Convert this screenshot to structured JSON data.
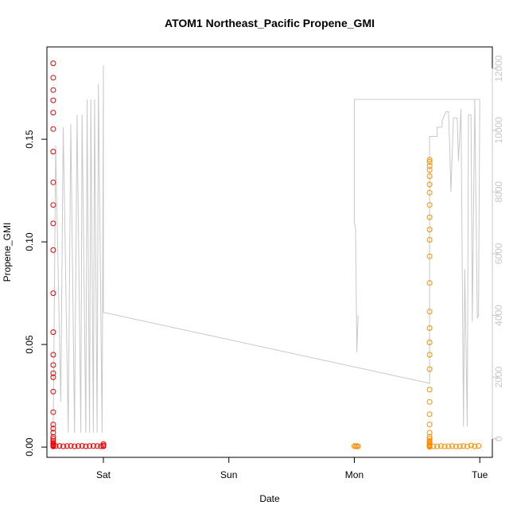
{
  "chart_data": {
    "type": "scatter",
    "title": "ATOM1 Northeast_Pacific Propene_GMI",
    "xlabel": "Date",
    "ylabel": "Propene_GMI",
    "x_ticks": [
      "Sat",
      "Sun",
      "Mon",
      "Tue"
    ],
    "x_tick_positions": [
      3,
      4,
      5,
      6
    ],
    "xlim": [
      2.55,
      6.1
    ],
    "ylim": [
      -0.005,
      0.195
    ],
    "y_ticks": [
      0.0,
      0.05,
      0.1,
      0.15
    ],
    "y_tick_labels": [
      "0.00",
      "0.05",
      "0.10",
      "0.15"
    ],
    "y2lim": [
      -600,
      12700
    ],
    "y2_ticks": [
      0,
      2000,
      4000,
      6000,
      8000,
      10000,
      12000
    ],
    "y2_tick_labels": [
      "0",
      "2000",
      "4000",
      "6000",
      "8000",
      "10000",
      "12000"
    ],
    "colors": {
      "series1": "#ee0000",
      "series2": "#ff8c00",
      "altitude": "#c8c8c8",
      "axis": "#000000",
      "axis_right": "#c8c8c8"
    },
    "series": [
      {
        "color": "#ee0000",
        "x": [
          2.6,
          2.6,
          2.6,
          2.6,
          2.6,
          2.6,
          2.6,
          2.6,
          2.6,
          2.6,
          2.6,
          2.6,
          2.6,
          2.6,
          2.6,
          2.6,
          2.6,
          2.6,
          2.6,
          2.6,
          2.6,
          2.6,
          2.6,
          2.6,
          2.6,
          2.6,
          2.6,
          2.6,
          2.6,
          2.6,
          2.6,
          2.62,
          2.65,
          2.68,
          2.71,
          2.74,
          2.77,
          2.8,
          2.83,
          2.86,
          2.89,
          2.92,
          2.95,
          2.98,
          3.0,
          3.0,
          3.0
        ],
        "y": [
          0.187,
          0.18,
          0.174,
          0.169,
          0.163,
          0.155,
          0.144,
          0.129,
          0.118,
          0.109,
          0.096,
          0.075,
          0.056,
          0.045,
          0.04,
          0.036,
          0.034,
          0.027,
          0.017,
          0.011,
          0.009,
          0.007,
          0.005,
          0.004,
          0.003,
          0.002,
          0.0015,
          0.001,
          0.0008,
          0.0005,
          0.0003,
          0.0005,
          0.0006,
          0.0004,
          0.0005,
          0.0006,
          0.0004,
          0.0005,
          0.0006,
          0.0004,
          0.0005,
          0.0006,
          0.0005,
          0.0004,
          0.0015,
          0.0008,
          0.0004
        ]
      },
      {
        "color": "#ff8c00",
        "x": [
          5.0,
          5.01,
          5.02,
          5.03,
          5.6,
          5.6,
          5.6,
          5.6,
          5.6,
          5.6,
          5.6,
          5.6,
          5.6,
          5.6,
          5.6,
          5.6,
          5.6,
          5.6,
          5.6,
          5.6,
          5.6,
          5.6,
          5.6,
          5.6,
          5.6,
          5.6,
          5.6,
          5.6,
          5.6,
          5.6,
          5.6,
          5.6,
          5.6,
          5.6,
          5.6,
          5.6,
          5.6,
          5.6,
          5.6,
          5.6,
          5.63,
          5.66,
          5.69,
          5.72,
          5.75,
          5.78,
          5.81,
          5.84,
          5.87,
          5.9,
          5.93,
          5.96,
          5.99
        ],
        "y": [
          0.0005,
          0.0003,
          0.0005,
          0.0004,
          0.14,
          0.139,
          0.137,
          0.135,
          0.132,
          0.128,
          0.124,
          0.118,
          0.112,
          0.106,
          0.101,
          0.093,
          0.08,
          0.066,
          0.058,
          0.051,
          0.045,
          0.038,
          0.028,
          0.022,
          0.016,
          0.011,
          0.007,
          0.005,
          0.004,
          0.003,
          0.0025,
          0.002,
          0.0015,
          0.001,
          0.0008,
          0.0006,
          0.0004,
          0.0003,
          0.0002,
          0.0001,
          0.0004,
          0.0003,
          0.0005,
          0.0003,
          0.0004,
          0.0005,
          0.0003,
          0.0004,
          0.0005,
          0.0003,
          0.0008,
          0.0004,
          0.0006
        ]
      }
    ],
    "altitude_series": {
      "color": "#c8c8c8",
      "x": [
        2.6,
        2.62,
        2.66,
        2.68,
        2.72,
        2.74,
        2.77,
        2.79,
        2.82,
        2.83,
        2.86,
        2.87,
        2.89,
        2.9,
        2.92,
        2.93,
        2.95,
        2.96,
        2.99,
        3.0,
        3.0,
        5.6,
        5.6,
        5.66,
        5.66,
        5.7,
        5.7,
        5.73,
        5.75,
        5.76,
        5.77,
        5.79,
        5.79,
        5.82,
        5.83,
        5.85,
        5.87,
        5.88,
        5.9,
        5.91,
        5.93,
        5.94,
        5.96,
        5.98,
        5.99,
        6.0,
        6.0,
        5.0,
        5.0,
        5.01,
        5.02,
        5.03
      ],
      "y": [
        200,
        9500,
        1200,
        10100,
        200,
        10200,
        200,
        10500,
        200,
        10500,
        200,
        11000,
        200,
        11000,
        200,
        11000,
        200,
        11500,
        200,
        12100,
        4100,
        1800,
        9800,
        9800,
        10100,
        10100,
        10300,
        10600,
        10600,
        9500,
        8000,
        10400,
        10400,
        10400,
        9000,
        10700,
        400,
        5500,
        400,
        10500,
        10500,
        3800,
        11000,
        3900,
        4000,
        11000,
        11000,
        11000,
        7000,
        6800,
        2800,
        4000
      ]
    }
  }
}
